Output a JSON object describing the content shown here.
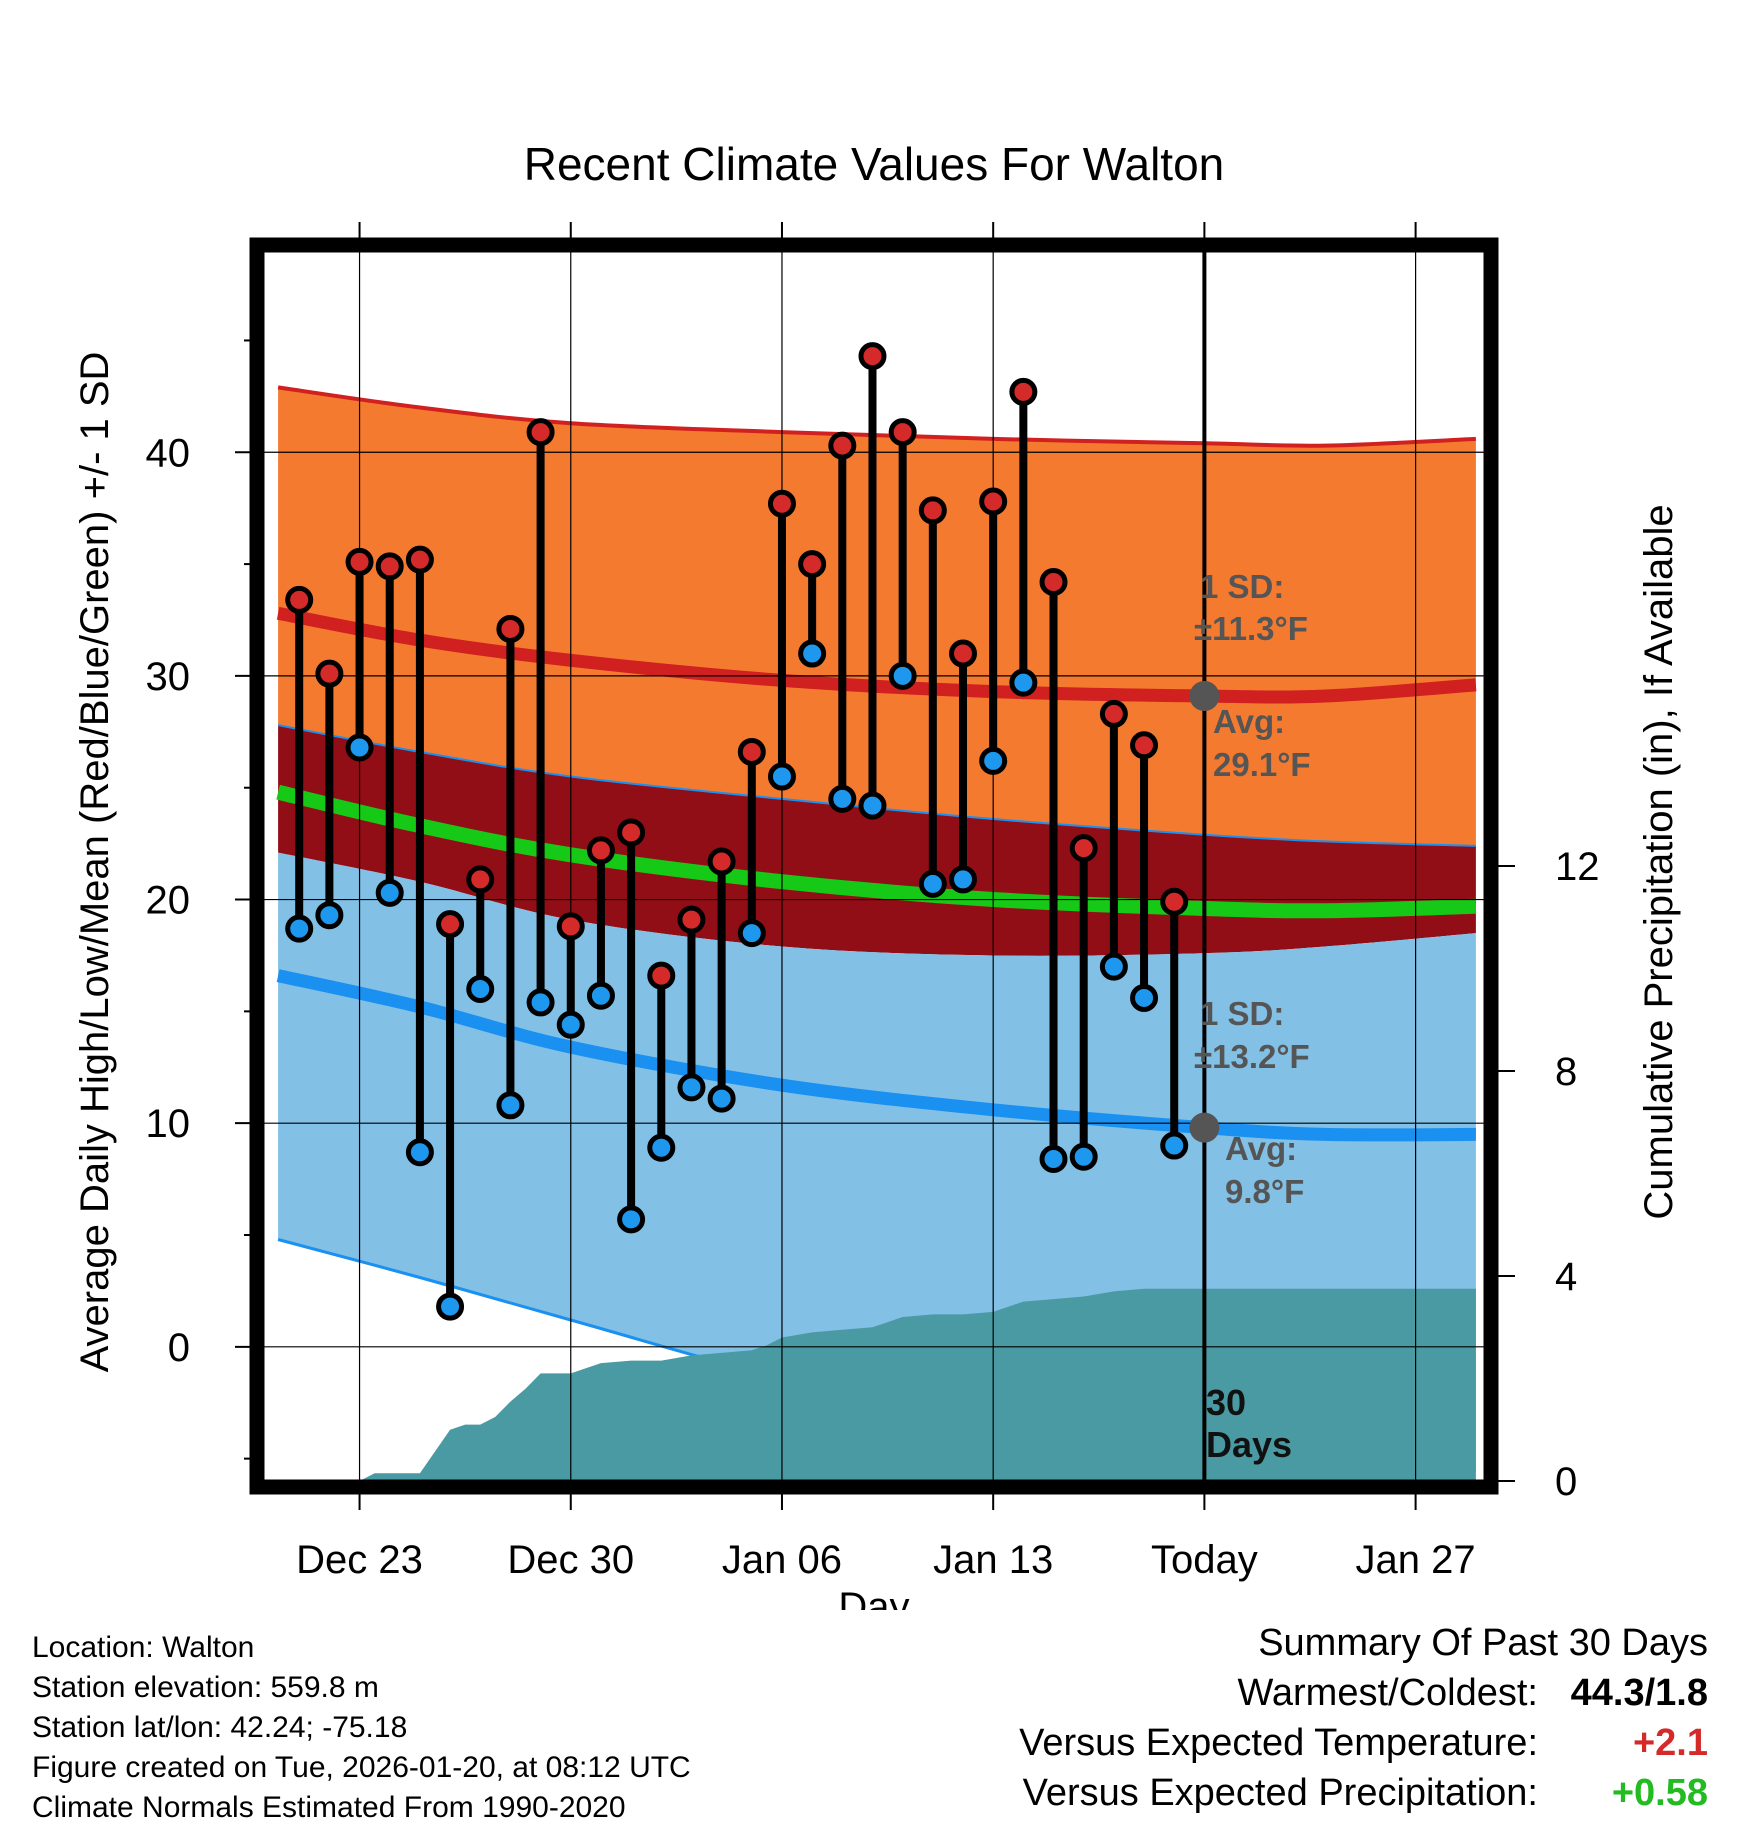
{
  "chart_data": {
    "type": "line",
    "title": "Recent Climate Values For Walton",
    "xlabel": "Day",
    "ylabel": "Average Daily High/Low/Mean (Red/Blue/Green) +/- 1 SD",
    "y2label": "Cumulative Precipitation (in), If Available",
    "ylim": [
      -6,
      49
    ],
    "y2lim": [
      0,
      24
    ],
    "yticks": [
      "0",
      "10",
      "20",
      "30",
      "40"
    ],
    "y2ticks": [
      "0",
      "4",
      "8",
      "12"
    ],
    "xlim": [
      -3.2,
      37.3
    ],
    "xtick_labels": [
      {
        "day": 0,
        "label": "Dec 23"
      },
      {
        "day": 7,
        "label": "Dec 30"
      },
      {
        "day": 14,
        "label": "Jan 06"
      },
      {
        "day": 21,
        "label": "Jan 13"
      },
      {
        "day": 28,
        "label": "Today"
      },
      {
        "day": 35,
        "label": "Jan 27"
      }
    ],
    "today_day": 28,
    "normals": {
      "x": [
        -2.7,
        2,
        7,
        14,
        21,
        28,
        32,
        37
      ],
      "high_avg": [
        32.8,
        31.6,
        30.7,
        29.8,
        29.3,
        29.1,
        29.1,
        29.6
      ],
      "high_sd_upper": [
        42.9,
        42.0,
        41.3,
        40.9,
        40.6,
        40.4,
        40.3,
        40.6
      ],
      "high_sd_lower": [
        27.8,
        26.6,
        25.5,
        24.5,
        23.6,
        22.9,
        22.6,
        22.4
      ],
      "mean_avg": [
        24.8,
        23.3,
        22.0,
        20.8,
        20.0,
        19.6,
        19.5,
        19.7
      ],
      "low_avg": [
        16.6,
        15.2,
        13.4,
        11.7,
        10.6,
        9.8,
        9.5,
        9.5
      ],
      "low_sd_upper": [
        22.1,
        20.8,
        19.1,
        17.9,
        17.5,
        17.6,
        17.9,
        18.5
      ],
      "low_sd_lower": [
        4.8,
        3.1,
        1.2,
        -1.4,
        -3.2,
        -4.5,
        -5.0,
        -5.5
      ]
    },
    "observed": [
      {
        "day": -2,
        "high": 33.4,
        "low": 18.7
      },
      {
        "day": -1,
        "high": 30.1,
        "low": 19.3
      },
      {
        "day": 0,
        "high": 35.1,
        "low": 26.8
      },
      {
        "day": 1,
        "high": 34.9,
        "low": 20.3
      },
      {
        "day": 2,
        "high": 35.2,
        "low": 8.7
      },
      {
        "day": 3,
        "high": 18.9,
        "low": 1.8
      },
      {
        "day": 4,
        "high": 20.9,
        "low": 16.0
      },
      {
        "day": 5,
        "high": 32.1,
        "low": 10.8
      },
      {
        "day": 6,
        "high": 40.9,
        "low": 15.4
      },
      {
        "day": 7,
        "high": 18.8,
        "low": 14.4
      },
      {
        "day": 8,
        "high": 22.2,
        "low": 15.7
      },
      {
        "day": 9,
        "high": 23.0,
        "low": 5.7
      },
      {
        "day": 10,
        "high": 16.6,
        "low": 8.9
      },
      {
        "day": 11,
        "high": 19.1,
        "low": 11.6
      },
      {
        "day": 12,
        "high": 21.7,
        "low": 11.1
      },
      {
        "day": 13,
        "high": 26.6,
        "low": 18.5
      },
      {
        "day": 14,
        "high": 37.7,
        "low": 25.5
      },
      {
        "day": 15,
        "high": 35.0,
        "low": 31.0
      },
      {
        "day": 16,
        "high": 40.3,
        "low": 24.5
      },
      {
        "day": 17,
        "high": 44.3,
        "low": 24.2
      },
      {
        "day": 18,
        "high": 40.9,
        "low": 30.0
      },
      {
        "day": 19,
        "high": 37.4,
        "low": 20.7
      },
      {
        "day": 20,
        "high": 31.0,
        "low": 20.9
      },
      {
        "day": 21,
        "high": 37.8,
        "low": 26.2
      },
      {
        "day": 22,
        "high": 42.7,
        "low": 29.7
      },
      {
        "day": 23,
        "high": 34.2,
        "low": 8.4
      },
      {
        "day": 24,
        "high": 22.3,
        "low": 8.5
      },
      {
        "day": 25,
        "high": 28.3,
        "low": 17.0
      },
      {
        "day": 26,
        "high": 26.9,
        "low": 15.6
      },
      {
        "day": 27,
        "high": 19.9,
        "low": 9.0
      }
    ],
    "precip_cumulative": {
      "day": [
        0,
        0.5,
        2,
        3,
        3.5,
        4,
        4.5,
        5,
        5.5,
        6,
        7,
        7.5,
        8,
        9,
        10,
        11,
        12,
        13,
        13.5,
        14,
        15,
        16,
        17,
        18,
        19,
        20,
        21,
        22,
        23,
        24,
        25,
        26,
        27,
        28,
        37
      ],
      "in": [
        0,
        0.15,
        0.15,
        1.0,
        1.1,
        1.1,
        1.25,
        1.55,
        1.8,
        2.1,
        2.1,
        2.2,
        2.3,
        2.35,
        2.35,
        2.45,
        2.5,
        2.55,
        2.65,
        2.8,
        2.9,
        2.95,
        3.0,
        3.2,
        3.25,
        3.25,
        3.3,
        3.5,
        3.55,
        3.6,
        3.7,
        3.75,
        3.75,
        3.75,
        3.75
      ]
    },
    "annotations": {
      "high_sd_line1": "1 SD:",
      "high_sd_line2": "±11.3°F",
      "high_avg_line1": "Avg:",
      "high_avg_line2": "29.1°F",
      "low_sd_line1": "1 SD:",
      "low_sd_line2": "±13.2°F",
      "low_avg_line1": "Avg:",
      "low_avg_line2": "9.8°F",
      "days_line1": "30",
      "days_line2": "Days",
      "today_high_avg": 29.1,
      "today_low_avg": 9.8
    },
    "colors": {
      "high_band": "#f47a30",
      "high_line": "#d02020",
      "mean_band": "#920e16",
      "mean_line": "#17c917",
      "low_band": "#82c0e6",
      "low_line": "#1a90f0",
      "precip": "#4a9aa3",
      "high_marker": "#d42a2a",
      "low_marker": "#1e98ee",
      "avg_marker": "#555555"
    }
  },
  "footer": {
    "location": "Location: Walton",
    "elevation": "Station elevation: 559.8 m",
    "latlon": "Station lat/lon: 42.24; -75.18",
    "created": "Figure created on Tue, 2026-01-20, at 08:12 UTC",
    "normals": "Climate Normals Estimated From 1990-2020"
  },
  "summary": {
    "title": "Summary Of Past 30 Days",
    "warm_label": "Warmest/Coldest:",
    "warm_value": "44.3/1.8",
    "temp_label": "Versus Expected Temperature:",
    "temp_value": "+2.1",
    "temp_color": "#d42a2a",
    "precip_label": "Versus Expected Precipitation:",
    "precip_value": "+0.58",
    "precip_color": "#22bb22"
  }
}
